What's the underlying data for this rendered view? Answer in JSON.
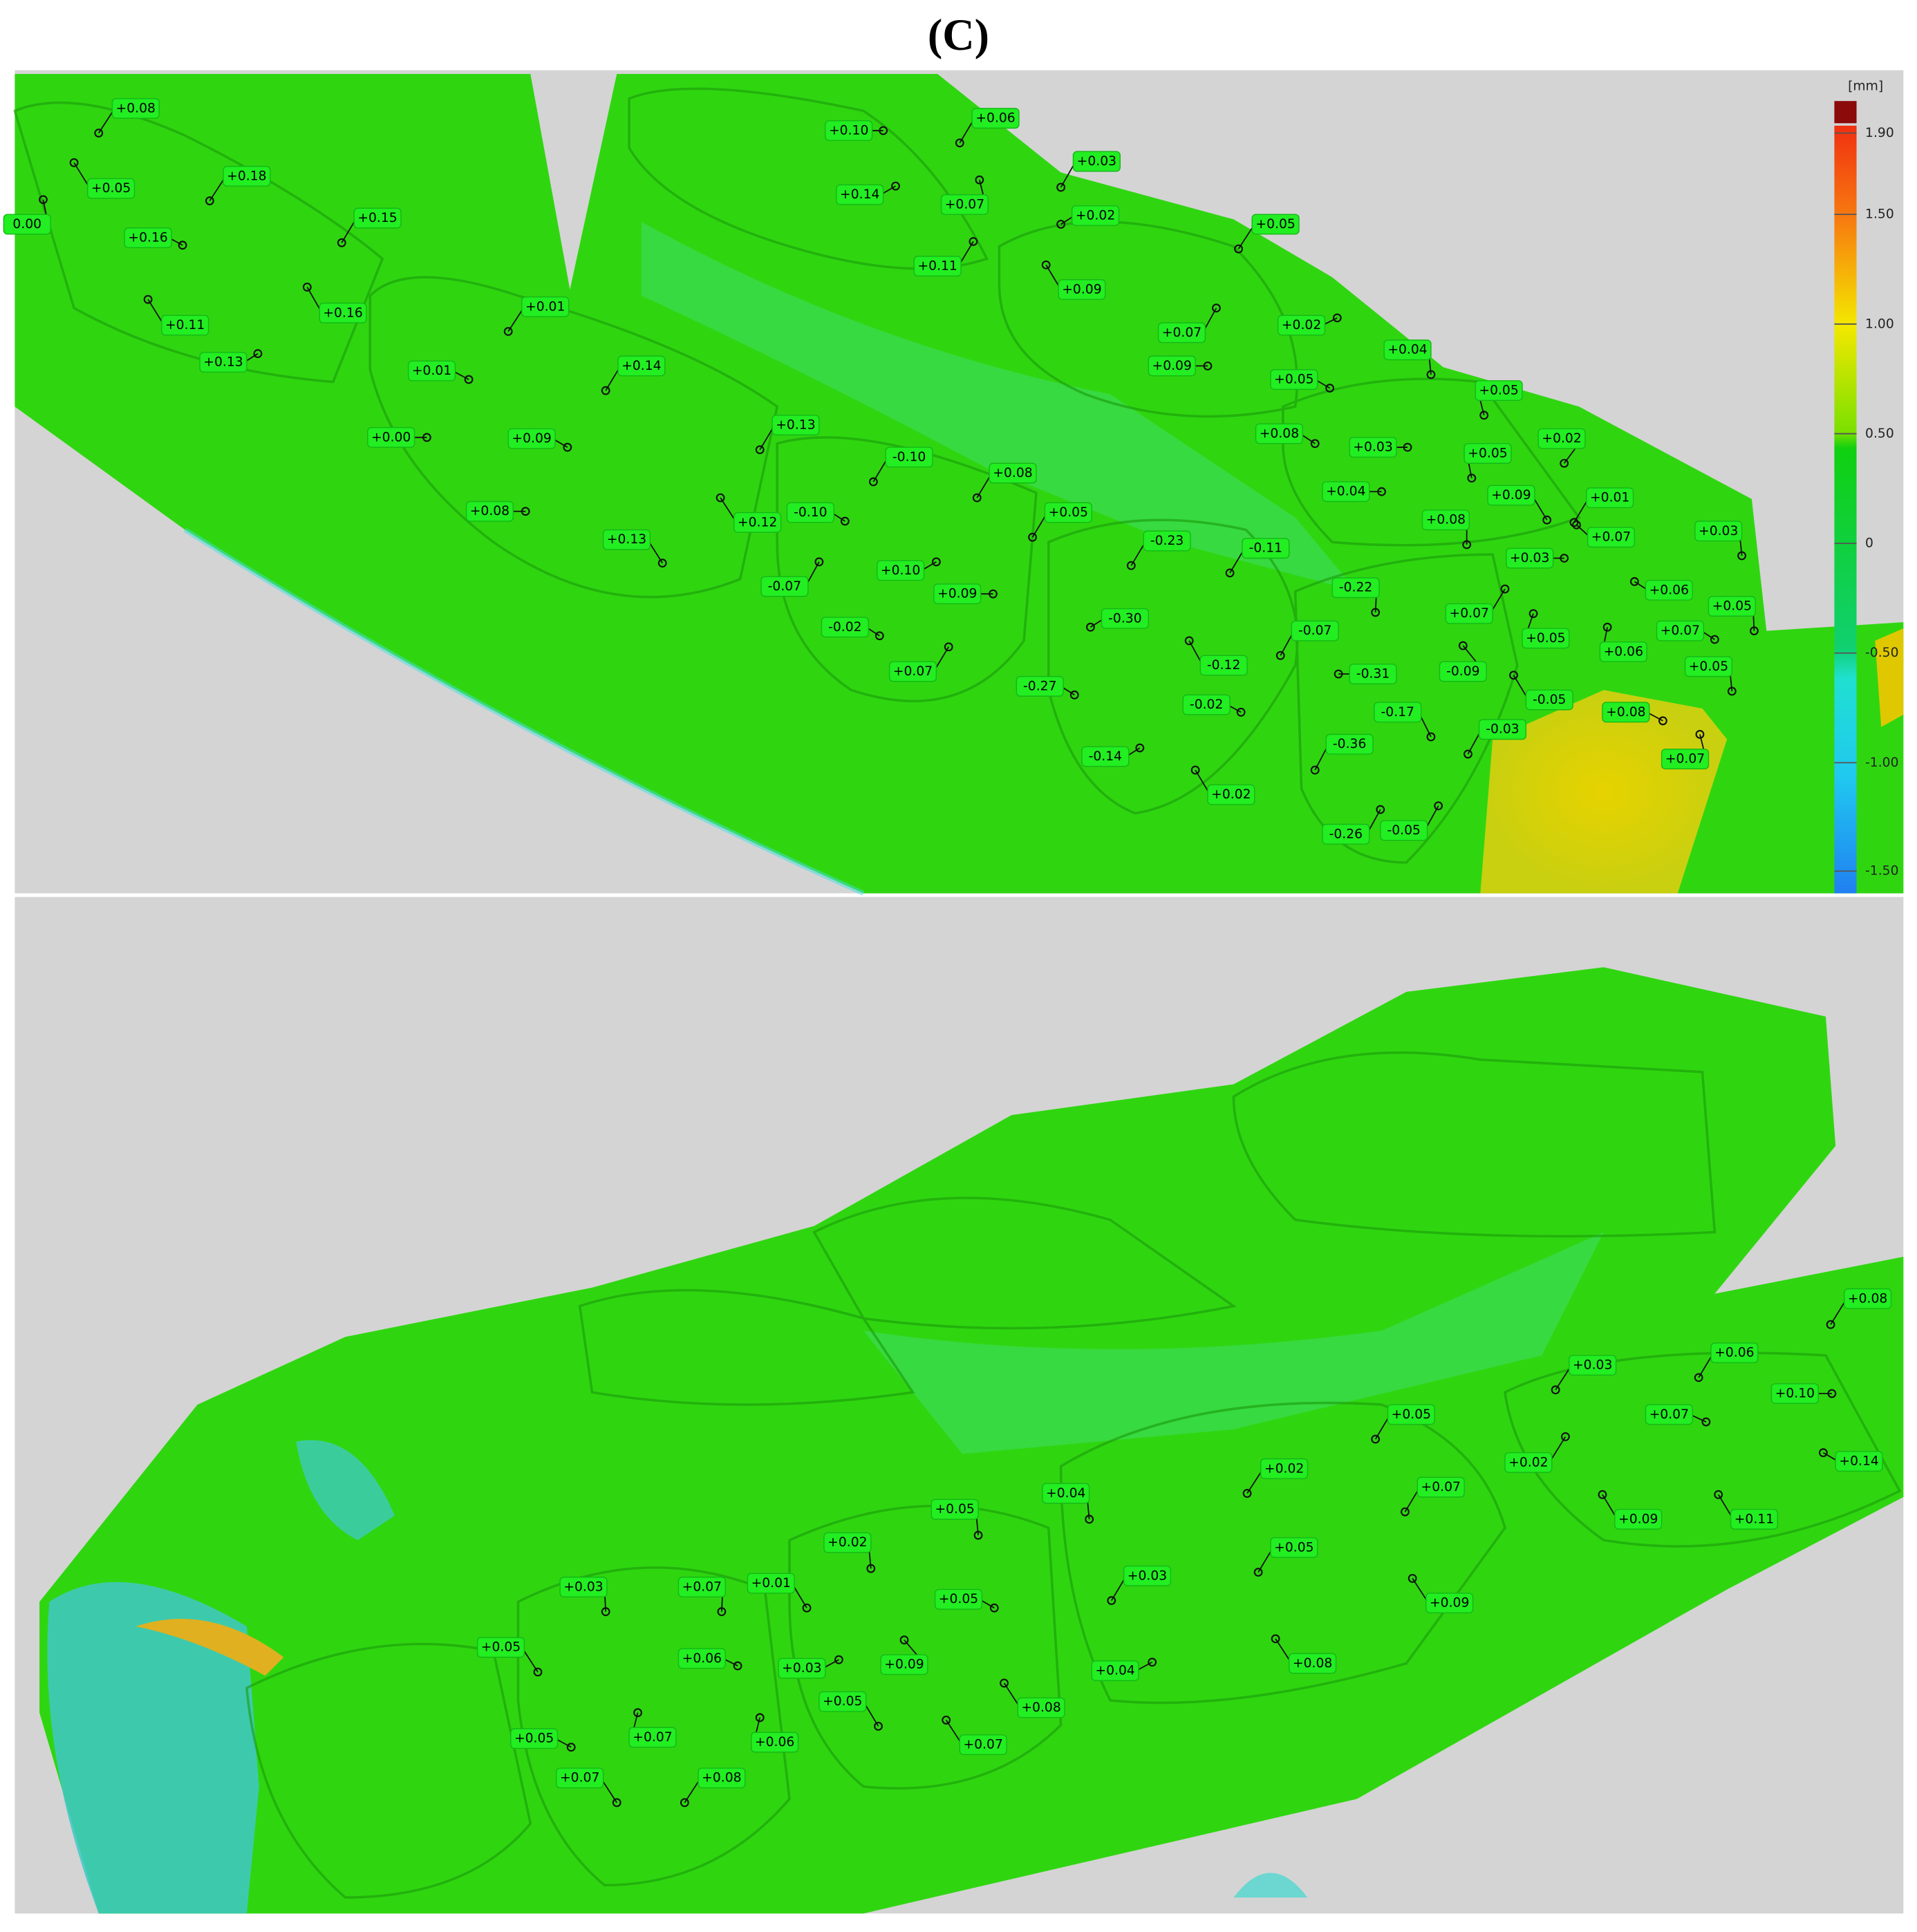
{
  "title": "(C)",
  "colorbar": {
    "unit": "[mm]",
    "ticks": [
      "1.90",
      "1.50",
      "1.00",
      "0.50",
      "0",
      "-0.50",
      "-1.00",
      "-1.50"
    ]
  },
  "top_view": {
    "labels": [
      "+0.08",
      "+0.05",
      "0.00",
      "+0.18",
      "+0.16",
      "+0.15",
      "+0.11",
      "+0.16",
      "+0.13",
      "+0.01",
      "+0.01",
      "+0.14",
      "+0.00",
      "+0.09",
      "+0.13",
      "+0.08",
      "+0.13",
      "+0.12",
      "-0.10",
      "-0.10",
      "+0.08",
      "+0.05",
      "-0.07",
      "+0.10",
      "+0.09",
      "-0.02",
      "+0.07",
      "-0.23",
      "-0.11",
      "-0.30",
      "-0.12",
      "-0.07",
      "-0.27",
      "-0.02",
      "-0.14",
      "+0.02",
      "-0.22",
      "-0.31",
      "+0.07",
      "-0.09",
      "-0.17",
      "-0.36",
      "-0.03",
      "-0.26",
      "-0.05",
      "-0.05",
      "+0.05",
      "+0.08",
      "+0.07",
      "+0.06",
      "+0.07",
      "+0.05",
      "+0.05",
      "+0.03",
      "+0.06",
      "+0.07",
      "+0.01",
      "+0.03",
      "+0.08",
      "+0.09",
      "+0.04",
      "+0.05",
      "+0.02",
      "+0.05",
      "+0.03",
      "+0.08",
      "+0.05",
      "+0.04",
      "+0.02",
      "+0.09",
      "+0.07",
      "+0.05",
      "+0.09",
      "+0.02",
      "+0.03",
      "+0.11",
      "+0.07",
      "+0.14",
      "+0.10",
      "+0.06"
    ]
  },
  "bottom_view": {
    "labels": [
      "+0.08",
      "+0.03",
      "+0.06",
      "+0.10",
      "+0.07",
      "+0.14",
      "+0.02",
      "+0.09",
      "+0.11",
      "+0.05",
      "+0.02",
      "+0.07",
      "+0.04",
      "+0.05",
      "+0.09",
      "+0.08",
      "+0.03",
      "+0.04",
      "+0.05",
      "+0.02",
      "+0.05",
      "+0.09",
      "+0.08",
      "+0.07",
      "+0.05",
      "+0.03",
      "+0.01",
      "+0.07",
      "+0.06",
      "+0.06",
      "+0.08",
      "+0.03",
      "+0.07",
      "+0.05",
      "+0.05",
      "+0.07"
    ]
  }
}
